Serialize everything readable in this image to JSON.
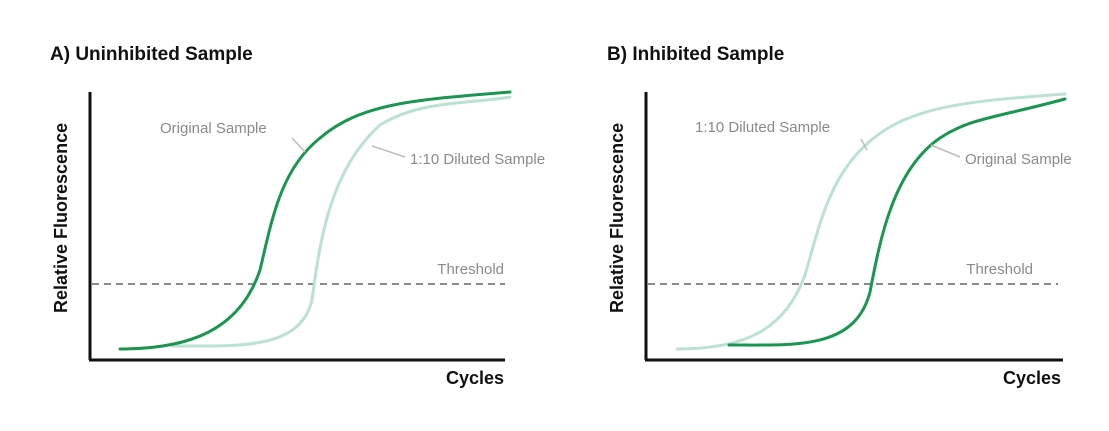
{
  "colors": {
    "original": "#1a9650",
    "diluted": "#b9e2d2",
    "threshold": "#8a8a8a",
    "axis": "#111111",
    "annotation_text": "#8a8a8a"
  },
  "chart_data": [
    {
      "type": "line",
      "title": "A) Uninhibited Sample",
      "xlabel": "Cycles",
      "ylabel": "Relative Fluorescence",
      "threshold_label": "Threshold",
      "grid": false,
      "series": [
        {
          "name": "Original Sample",
          "color_key": "original",
          "x": [
            3,
            8,
            12,
            15,
            17,
            19,
            21,
            24,
            28,
            31,
            34,
            37,
            42
          ],
          "y": [
            0.02,
            0.06,
            0.16,
            0.3,
            0.46,
            0.62,
            0.74,
            0.85,
            0.93,
            0.96,
            0.98,
            0.99,
            1.0
          ]
        },
        {
          "name": "1:10 Diluted Sample",
          "color_key": "diluted",
          "x": [
            8,
            12,
            15,
            19,
            21,
            23,
            25,
            28,
            31,
            34,
            38,
            42
          ],
          "y": [
            0.0,
            0.01,
            0.03,
            0.12,
            0.29,
            0.48,
            0.64,
            0.79,
            0.88,
            0.92,
            0.95,
            0.98
          ]
        }
      ],
      "threshold": 0.25,
      "xlim": [
        0,
        42
      ],
      "ylim": [
        0,
        1.05
      ]
    },
    {
      "type": "line",
      "title": "B) Inhibited Sample",
      "xlabel": "Cycles",
      "ylabel": "Relative Fluorescence",
      "threshold_label": "Threshold",
      "grid": false,
      "series": [
        {
          "name": "1:10 Diluted Sample",
          "color_key": "diluted",
          "x": [
            3,
            8,
            12,
            15,
            17,
            19,
            21,
            24,
            28,
            31,
            34,
            37,
            42
          ],
          "y": [
            0.0,
            0.04,
            0.13,
            0.28,
            0.44,
            0.6,
            0.73,
            0.84,
            0.92,
            0.96,
            0.98,
            0.99,
            1.0
          ]
        },
        {
          "name": "Original Sample",
          "color_key": "original",
          "x": [
            8,
            12,
            15,
            19,
            21,
            23,
            25,
            28,
            31,
            34,
            38,
            42
          ],
          "y": [
            0.0,
            0.0,
            0.03,
            0.13,
            0.3,
            0.5,
            0.67,
            0.79,
            0.85,
            0.88,
            0.91,
            0.95
          ]
        }
      ],
      "threshold": 0.25,
      "xlim": [
        0,
        42
      ],
      "ylim": [
        0,
        1.05
      ]
    }
  ]
}
